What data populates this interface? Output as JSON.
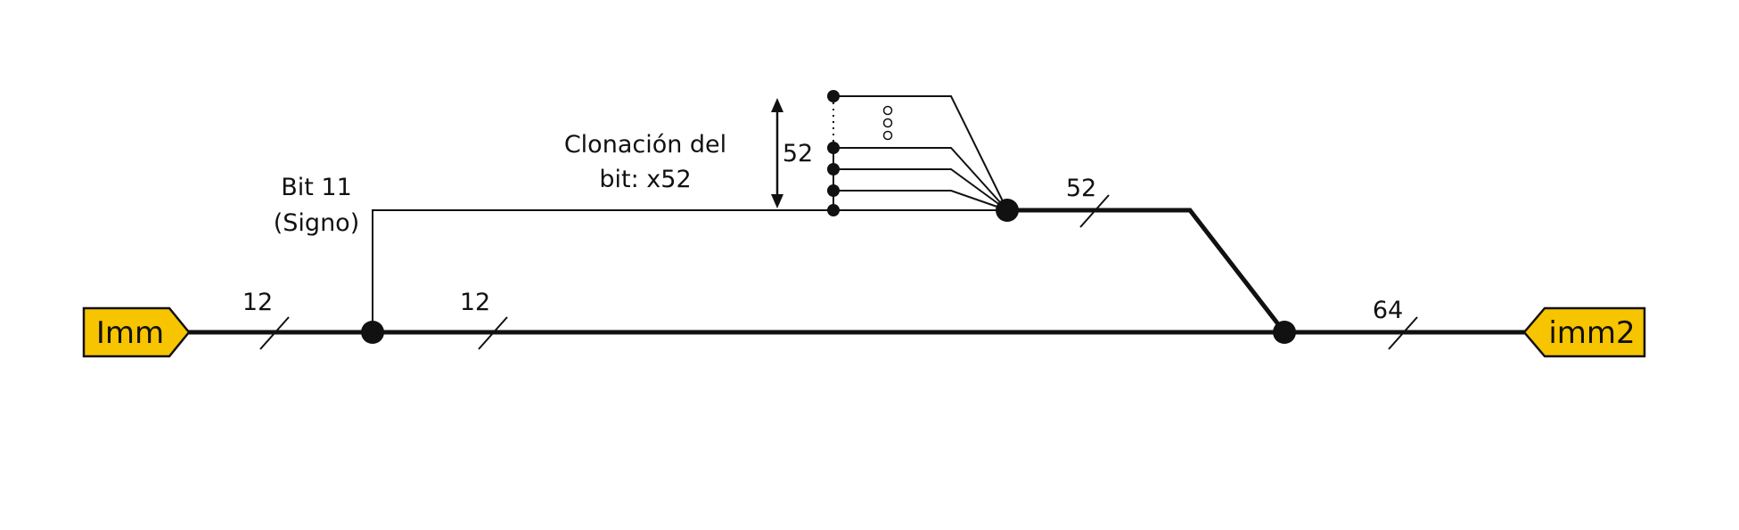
{
  "colors": {
    "port_fill": "#f7c400",
    "stroke": "#111111"
  },
  "ports": {
    "input": {
      "label": "Imm"
    },
    "output": {
      "label": "imm2"
    }
  },
  "bus_widths": {
    "input_segment": "12",
    "main_segment": "12",
    "extended_segment": "52",
    "output_segment": "64",
    "replication_height": "52"
  },
  "labels": {
    "sign_bit_line1": "Bit 11",
    "sign_bit_line2": "(Signo)",
    "clone_line1": "Clonación del",
    "clone_line2": "bit: x52"
  }
}
